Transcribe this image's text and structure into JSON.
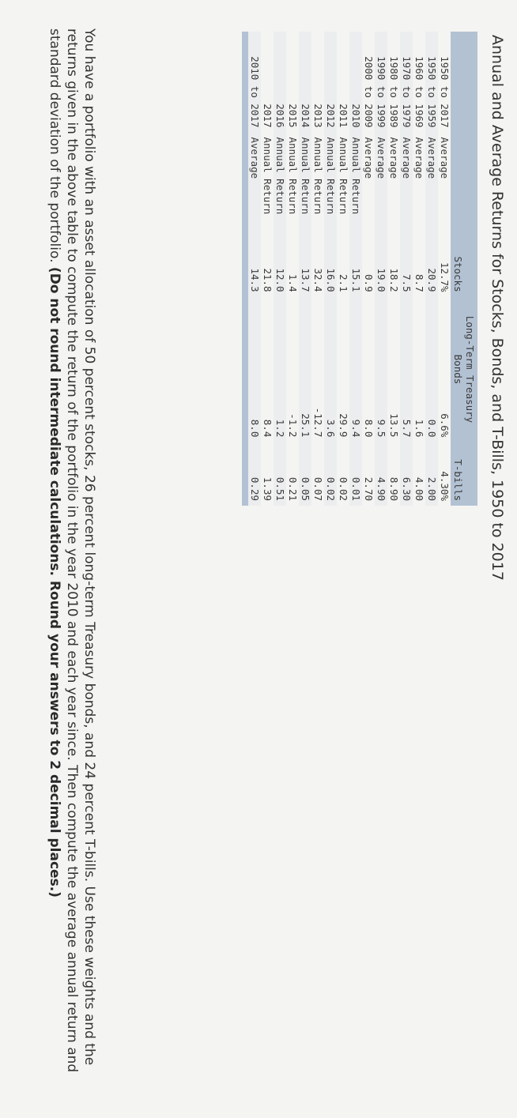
{
  "header": {
    "title": "Annual and Average Returns for Stocks, Bonds, and T-Bills, 1950 to 2017"
  },
  "table": {
    "columns": {
      "stocks": "Stocks",
      "bonds_line1": "Long-Term Treasury",
      "bonds_line2": "Bonds",
      "tbills": "T-bills"
    },
    "rows": [
      [
        "1950 to 2017",
        "Average",
        "12.7%",
        "6.6%",
        "4.30%"
      ],
      [
        "1950 to 1959",
        "Average",
        "20.9",
        "0.0",
        "2.00"
      ],
      [
        "1960 to 1969",
        "Average",
        "8.7",
        "1.6",
        "4.00"
      ],
      [
        "1970 to 1979",
        "Average",
        "7.5",
        "5.7",
        "6.30"
      ],
      [
        "1980 to 1989",
        "Average",
        "18.2",
        "13.5",
        "8.90"
      ],
      [
        "1990 to 1999",
        "Average",
        "19.0",
        "9.5",
        "4.90"
      ],
      [
        "2000 to 2009",
        "Average",
        "0.9",
        "8.0",
        "2.70"
      ],
      [
        "2010",
        "Annual Return",
        "15.1",
        "9.4",
        "0.01"
      ],
      [
        "2011",
        "Annual Return",
        "2.1",
        "29.9",
        "0.02"
      ],
      [
        "2012",
        "Annual Return",
        "16.0",
        "3.6",
        "0.02"
      ],
      [
        "2013",
        "Annual Return",
        "32.4",
        "-12.7",
        "0.07"
      ],
      [
        "2014",
        "Annual Return",
        "13.7",
        "25.1",
        "0.05"
      ],
      [
        "2015",
        "Annual Return",
        "1.4",
        "-1.2",
        "0.21"
      ],
      [
        "2016",
        "Annual Return",
        "12.0",
        "1.2",
        "0.51"
      ],
      [
        "2017",
        "Annual Return",
        "21.8",
        "8.4",
        "1.39"
      ],
      [
        "2010 to 2017",
        "Average",
        "14.3",
        "8.0",
        "0.29"
      ]
    ]
  },
  "question": {
    "text": "You have a portfolio with an asset allocation of 50 percent stocks, 26 percent long-term Treasury bonds, and 24 percent T-bills. Use these weights and the returns given in the above table to compute the return of the portfolio in the year 2010 and each year since. Then compute the average annual return and standard deviation of the portfolio.",
    "instruction": "(Do not round intermediate calculations. Round your answers to 2 decimal places.)"
  }
}
